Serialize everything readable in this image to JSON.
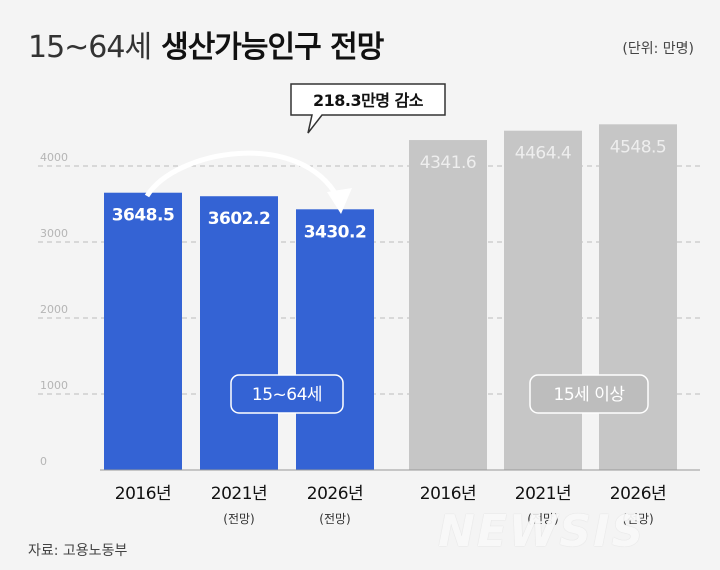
{
  "header": {
    "title_prefix": "15~64세",
    "title_main": "생산가능인구 전망",
    "unit": "(단위: 만명)"
  },
  "annotation": {
    "decrease_label": "218.3만명 감소"
  },
  "groups": {
    "working_age": "15~64세",
    "fifteen_plus": "15세 이상"
  },
  "footer": {
    "source": "자료: 고용노동부",
    "watermark": "NEWSIS"
  },
  "colors": {
    "blue": "#3463d4",
    "gray": "#c6c6c6",
    "gray_text": "#eeeeee"
  },
  "chart_data": {
    "type": "bar",
    "ylim": [
      0,
      4800
    ],
    "yticks": [
      0,
      1000,
      2000,
      3000,
      4000
    ],
    "grid": true,
    "categories": [
      {
        "year": "2016년",
        "note": ""
      },
      {
        "year": "2021년",
        "note": "(전망)"
      },
      {
        "year": "2026년",
        "note": "(전망)"
      },
      {
        "year": "2016년",
        "note": ""
      },
      {
        "year": "2021년",
        "note": "(전망)"
      },
      {
        "year": "2026년",
        "note": "(전망)"
      }
    ],
    "series": [
      {
        "name": "15~64세",
        "values": [
          3648.5,
          3602.2,
          3430.2,
          null,
          null,
          null
        ],
        "labels": [
          "3648.5",
          "3602.2",
          "3430.2"
        ]
      },
      {
        "name": "15세 이상",
        "values": [
          null,
          null,
          null,
          4341.6,
          4464.4,
          4548.5
        ],
        "labels": [
          "4341.6",
          "4464.4",
          "4548.5"
        ]
      }
    ]
  }
}
